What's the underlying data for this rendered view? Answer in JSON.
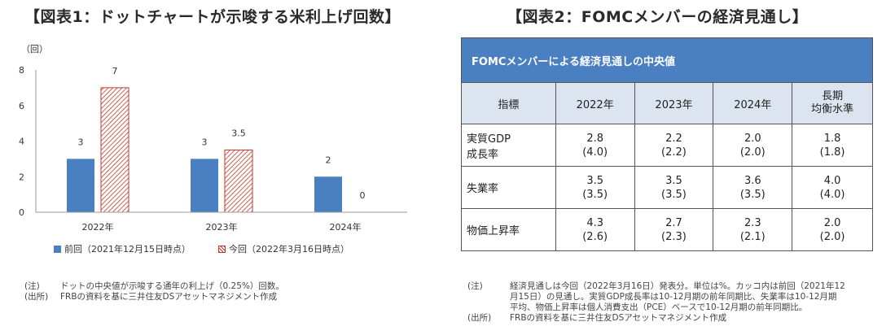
{
  "left": {
    "title": "【図表1：ドットチャートが示唆する米利上げ回数】",
    "legend": [
      {
        "label": "前回（2021年12月15日時点）",
        "style": "solid",
        "color": "#4a7fc1"
      },
      {
        "label": "今回（2022年3月16日時点）",
        "style": "hatched",
        "color": "#c0392b"
      }
    ],
    "notes": [
      {
        "label": "(注)",
        "text": "ドットの中央値が示唆する通年の利上げ（0.25%）回数。"
      },
      {
        "label": "(出所)",
        "text": "FRBの資料を基に三井住友DSアセットマネジメント作成"
      }
    ]
  },
  "chart_data": {
    "type": "bar",
    "ylabel": "（回）",
    "ylim": [
      0,
      8
    ],
    "yticks": [
      0,
      2,
      4,
      6,
      8
    ],
    "categories": [
      "2022年",
      "2023年",
      "2024年"
    ],
    "series": [
      {
        "name": "前回（2021年12月15日時点）",
        "values": [
          3,
          3,
          2
        ],
        "labels": [
          "3",
          "3",
          "2"
        ],
        "color": "#4a7fc1",
        "style": "solid"
      },
      {
        "name": "今回（2022年3月16日時点）",
        "values": [
          7,
          3.5,
          0
        ],
        "labels": [
          "7",
          "3.5",
          "0"
        ],
        "color": "#c0392b",
        "style": "hatched"
      }
    ],
    "grid": false,
    "legend_position": "bottom"
  },
  "right": {
    "title": "【図表2：FOMCメンバーの経済見通し】",
    "table_title": "FOMCメンバーによる経済見通しの中央値",
    "col_headers": [
      "指標",
      "2022年",
      "2023年",
      "2024年"
    ],
    "long_run_header": [
      "長期",
      "均衡水準"
    ],
    "rows": [
      {
        "name": [
          "実質GDP",
          "成長率"
        ],
        "cells": [
          [
            "2.8",
            "(4.0)"
          ],
          [
            "2.2",
            "(2.2)"
          ],
          [
            "2.0",
            "(2.0)"
          ],
          [
            "1.8",
            "(1.8)"
          ]
        ]
      },
      {
        "name": [
          "失業率",
          ""
        ],
        "cells": [
          [
            "3.5",
            "(3.5)"
          ],
          [
            "3.5",
            "(3.5)"
          ],
          [
            "3.6",
            "(3.5)"
          ],
          [
            "4.0",
            "(4.0)"
          ]
        ]
      },
      {
        "name": [
          "物価上昇率",
          ""
        ],
        "cells": [
          [
            "4.3",
            "(2.6)"
          ],
          [
            "2.7",
            "(2.3)"
          ],
          [
            "2.3",
            "(2.1)"
          ],
          [
            "2.0",
            "(2.0)"
          ]
        ]
      }
    ],
    "notes": [
      {
        "label": "(注)",
        "lines": [
          "経済見通しは今回（2022年3月16日）発表分。単位は%。カッコ内は前回（2021年12",
          "月15日）の見通し。実質GDP成長率は10-12月期の前年同期比、失業率は10-12月期",
          "平均、物価上昇率は個人消費支出（PCE）ベースで10-12月期の前年同期比。"
        ]
      },
      {
        "label": "(出所)",
        "lines": [
          "FRBの資料を基に三井住友DSアセットマネジメント作成"
        ]
      }
    ]
  }
}
